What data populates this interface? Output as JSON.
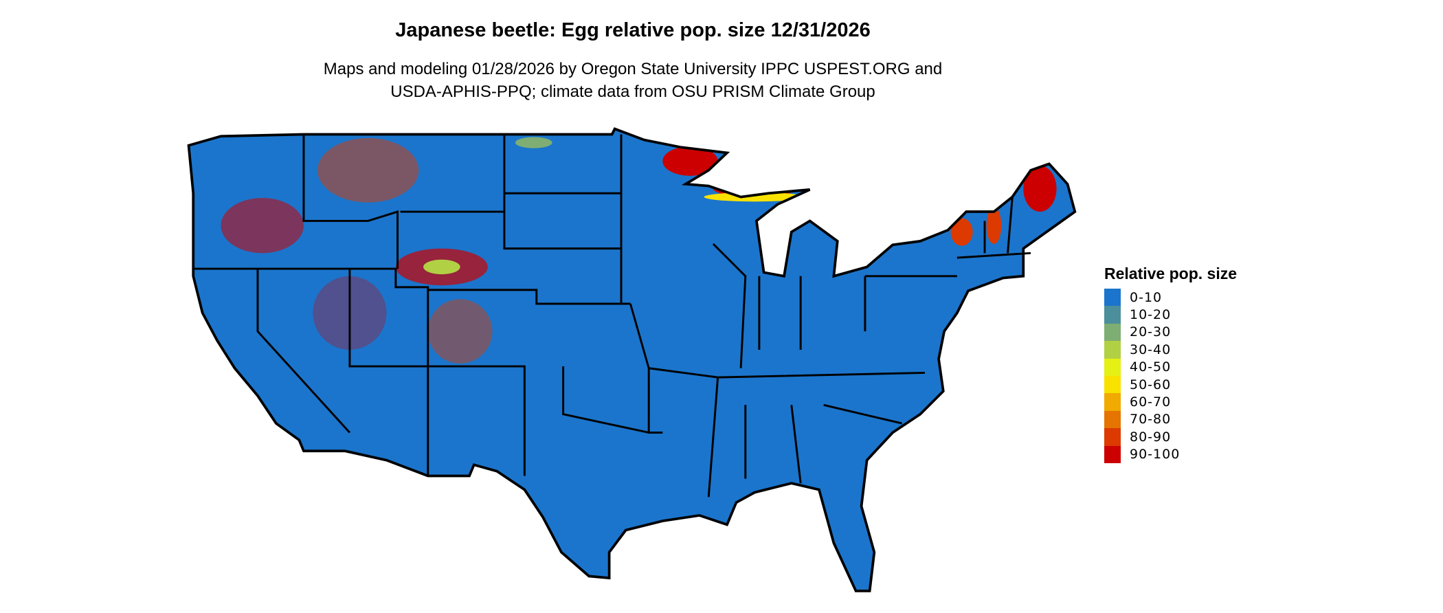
{
  "title": "Japanese beetle: Egg relative pop. size 12/31/2026",
  "subtitle_line1": "Maps and modeling 01/28/2026 by Oregon State University IPPC USPEST.ORG and",
  "subtitle_line2": "USDA-APHIS-PPQ; climate data from OSU PRISM Climate Group",
  "legend": {
    "title": "Relative pop. size",
    "items": [
      {
        "label": "0-10",
        "color": "#1b75cc"
      },
      {
        "label": "10-20",
        "color": "#4a8f9b"
      },
      {
        "label": "20-30",
        "color": "#7eae73"
      },
      {
        "label": "30-40",
        "color": "#b2d044"
      },
      {
        "label": "40-50",
        "color": "#e5f014"
      },
      {
        "label": "50-60",
        "color": "#f9e100"
      },
      {
        "label": "60-70",
        "color": "#f0aa00"
      },
      {
        "label": "70-80",
        "color": "#e57400"
      },
      {
        "label": "80-90",
        "color": "#dc3a00"
      },
      {
        "label": "90-100",
        "color": "#cc0000"
      }
    ]
  },
  "map": {
    "region": "Contiguous United States",
    "base_color": "#1b75cc",
    "border_color": "#000000"
  }
}
